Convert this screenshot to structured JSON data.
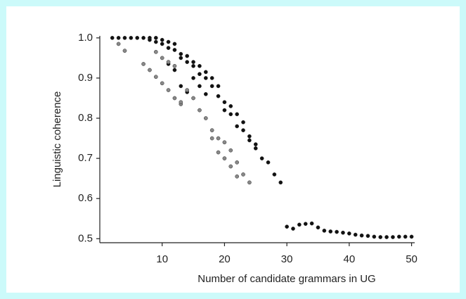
{
  "chart_data": {
    "type": "scatter",
    "x_label": "Number of candidate grammars in UG",
    "y_label": "Linguistic coherence",
    "xlim": [
      0,
      50.5
    ],
    "ylim": [
      0.49,
      1.005
    ],
    "xticks": [
      10,
      20,
      30,
      40,
      50
    ],
    "yticks": [
      0.5,
      0.6,
      0.7,
      0.8,
      0.9,
      {
        "value": 1.0,
        "label": "1.0"
      }
    ],
    "series": [
      {
        "color": "#111111",
        "x": [
          2,
          3,
          4,
          5,
          6,
          7,
          8,
          9,
          10,
          11,
          12,
          13,
          14,
          15,
          16,
          17,
          18,
          19,
          20,
          21,
          22,
          23,
          24,
          25,
          26,
          27,
          28,
          29,
          8,
          9,
          10,
          11,
          12,
          13,
          14,
          15,
          16,
          17,
          18,
          19,
          20,
          21,
          22,
          23,
          24,
          25,
          11,
          12,
          13,
          14,
          15,
          16,
          17,
          30,
          31,
          32,
          33,
          34,
          35,
          36,
          37,
          38,
          39,
          40,
          41,
          42,
          43,
          44,
          45,
          46,
          47,
          48,
          49,
          50
        ],
        "values": [
          1.0,
          1.0,
          1.0,
          1.0,
          1.0,
          1.0,
          1.0,
          1.0,
          0.995,
          0.99,
          0.985,
          0.96,
          0.955,
          0.94,
          0.93,
          0.915,
          0.9,
          0.88,
          0.84,
          0.83,
          0.81,
          0.79,
          0.755,
          0.735,
          0.7,
          0.69,
          0.66,
          0.64,
          0.995,
          0.99,
          0.985,
          0.975,
          0.97,
          0.95,
          0.94,
          0.93,
          0.91,
          0.9,
          0.88,
          0.855,
          0.82,
          0.81,
          0.78,
          0.77,
          0.745,
          0.725,
          0.935,
          0.92,
          0.88,
          0.865,
          0.9,
          0.88,
          0.86,
          0.53,
          0.525,
          0.535,
          0.537,
          0.538,
          0.528,
          0.52,
          0.518,
          0.517,
          0.515,
          0.513,
          0.51,
          0.508,
          0.507,
          0.505,
          0.504,
          0.504,
          0.504,
          0.505,
          0.505,
          0.505
        ]
      },
      {
        "color": "#888888",
        "x": [
          3,
          4,
          7,
          8,
          9,
          10,
          11,
          12,
          13,
          14,
          15,
          16,
          17,
          18,
          19,
          20,
          21,
          22,
          23,
          24,
          9,
          10,
          11,
          12,
          13,
          18,
          19,
          20,
          21,
          22
        ],
        "values": [
          0.985,
          0.968,
          0.935,
          0.92,
          0.903,
          0.887,
          0.87,
          0.85,
          0.835,
          0.87,
          0.85,
          0.82,
          0.8,
          0.77,
          0.75,
          0.74,
          0.72,
          0.69,
          0.66,
          0.64,
          0.965,
          0.95,
          0.94,
          0.93,
          0.84,
          0.75,
          0.715,
          0.7,
          0.68,
          0.655
        ]
      }
    ]
  }
}
